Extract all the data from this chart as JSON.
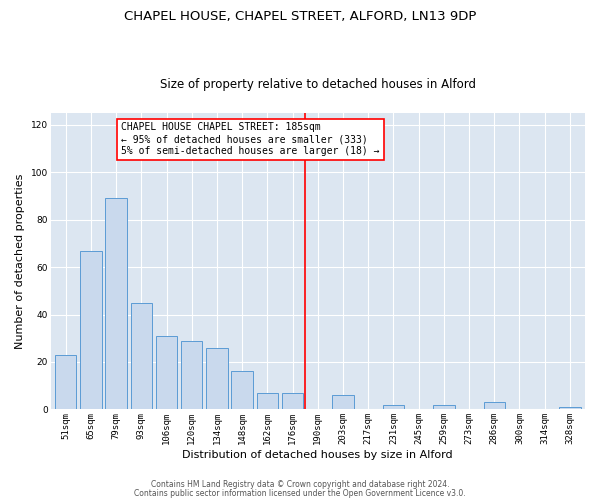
{
  "title": "CHAPEL HOUSE, CHAPEL STREET, ALFORD, LN13 9DP",
  "subtitle": "Size of property relative to detached houses in Alford",
  "xlabel": "Distribution of detached houses by size in Alford",
  "ylabel": "Number of detached properties",
  "bar_labels": [
    "51sqm",
    "65sqm",
    "79sqm",
    "93sqm",
    "106sqm",
    "120sqm",
    "134sqm",
    "148sqm",
    "162sqm",
    "176sqm",
    "190sqm",
    "203sqm",
    "217sqm",
    "231sqm",
    "245sqm",
    "259sqm",
    "273sqm",
    "286sqm",
    "300sqm",
    "314sqm",
    "328sqm"
  ],
  "bar_values": [
    23,
    67,
    89,
    45,
    31,
    29,
    26,
    16,
    7,
    7,
    0,
    6,
    0,
    2,
    0,
    2,
    0,
    3,
    0,
    0,
    1
  ],
  "bar_color": "#c9d9ed",
  "bar_edge_color": "#5b9bd5",
  "reference_line_x": 9.5,
  "reference_line_color": "red",
  "annotation_text": "CHAPEL HOUSE CHAPEL STREET: 185sqm\n← 95% of detached houses are smaller (333)\n5% of semi-detached houses are larger (18) →",
  "annotation_box_color": "white",
  "annotation_box_edge_color": "red",
  "ylim": [
    0,
    125
  ],
  "yticks": [
    0,
    20,
    40,
    60,
    80,
    100,
    120
  ],
  "footer_line1": "Contains HM Land Registry data © Crown copyright and database right 2024.",
  "footer_line2": "Contains public sector information licensed under the Open Government Licence v3.0.",
  "fig_bg_color": "#ffffff",
  "plot_bg_color": "#dce6f1",
  "title_fontsize": 9.5,
  "subtitle_fontsize": 8.5,
  "axis_label_fontsize": 8,
  "tick_fontsize": 6.5,
  "annotation_fontsize": 7,
  "footer_fontsize": 5.5
}
